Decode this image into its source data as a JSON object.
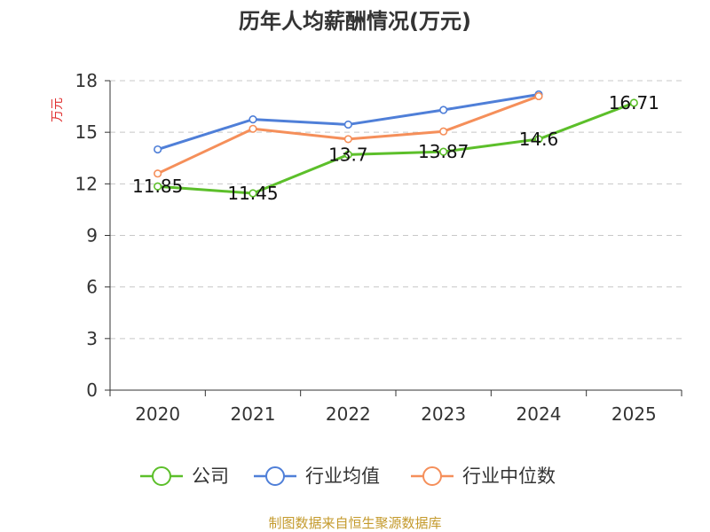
{
  "chart_data": {
    "type": "line",
    "title": "历年人均薪酬情况(万元)",
    "ylabel": "万元",
    "xlabel": "",
    "categories": [
      "2020",
      "2021",
      "2022",
      "2023",
      "2024",
      "2025"
    ],
    "ylim": [
      0,
      18
    ],
    "yticks": [
      0,
      3,
      6,
      9,
      12,
      15,
      18
    ],
    "grid": true,
    "legend_position": "bottom",
    "series": [
      {
        "name": "公司",
        "color": "#5cbf2a",
        "values": [
          11.85,
          11.45,
          13.7,
          13.87,
          14.6,
          16.71
        ],
        "labels": [
          "11.85",
          "11.45",
          "13.7",
          "13.87",
          "14.6",
          "16.71"
        ]
      },
      {
        "name": "行业均值",
        "color": "#4f7fd8",
        "values": [
          14.0,
          15.75,
          15.45,
          16.3,
          17.2,
          null
        ],
        "labels": []
      },
      {
        "name": "行业中位数",
        "color": "#f58f5a",
        "values": [
          12.6,
          15.2,
          14.6,
          15.05,
          17.1,
          null
        ],
        "labels": []
      }
    ]
  },
  "footer": {
    "source": "制图数据来自恒生聚源数据库"
  }
}
